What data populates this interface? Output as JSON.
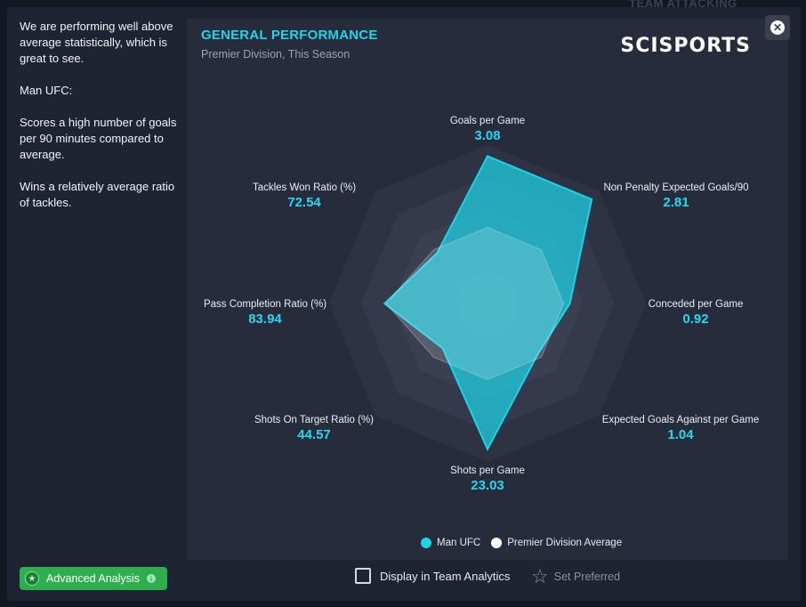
{
  "background": {
    "title": "TEAM ATTACKING"
  },
  "summary": {
    "paragraphs": [
      "We are performing well above average statistically, which is great to see.",
      "Man UFC:",
      "Scores a high number of goals per 90 minutes compared to average.",
      "Wins a relatively average ratio of tackles."
    ]
  },
  "panel": {
    "title": "GENERAL PERFORMANCE",
    "subtitle": "Premier Division, This Season",
    "brand": "SCISPORTS"
  },
  "close_icon": "close-icon",
  "chart_data": {
    "type": "radar",
    "title": "GENERAL PERFORMANCE",
    "subtitle": "Premier Division, This Season",
    "axes": [
      {
        "label": "Goals per Game",
        "value": "3.08"
      },
      {
        "label": "Non Penalty Expected Goals/90",
        "value": "2.81"
      },
      {
        "label": "Conceded per Game",
        "value": "0.92"
      },
      {
        "label": "Expected Goals Against per Game",
        "value": "1.04"
      },
      {
        "label": "Shots per Game",
        "value": "23.03"
      },
      {
        "label": "Shots On Target Ratio (%)",
        "value": "44.57"
      },
      {
        "label": "Pass Completion Ratio (%)",
        "value": "83.94"
      },
      {
        "label": "Tackles Won Ratio (%)",
        "value": "72.54"
      }
    ],
    "series": [
      {
        "name": "Man UFC",
        "color": "#1fd2e8",
        "normalized": [
          0.93,
          0.93,
          0.52,
          0.45,
          0.92,
          0.4,
          0.65,
          0.45
        ]
      },
      {
        "name": "Premier Division Average",
        "color": "#ffffff",
        "normalized": [
          0.48,
          0.48,
          0.48,
          0.48,
          0.48,
          0.48,
          0.64,
          0.48
        ]
      }
    ],
    "legend_position": "bottom"
  },
  "footer": {
    "advanced_label": "Advanced Analysis",
    "display_label": "Display in Team Analytics",
    "preferred_label": "Set Preferred"
  },
  "colors": {
    "accent": "#22d5ea",
    "advanced_green": "#2eae4d"
  }
}
